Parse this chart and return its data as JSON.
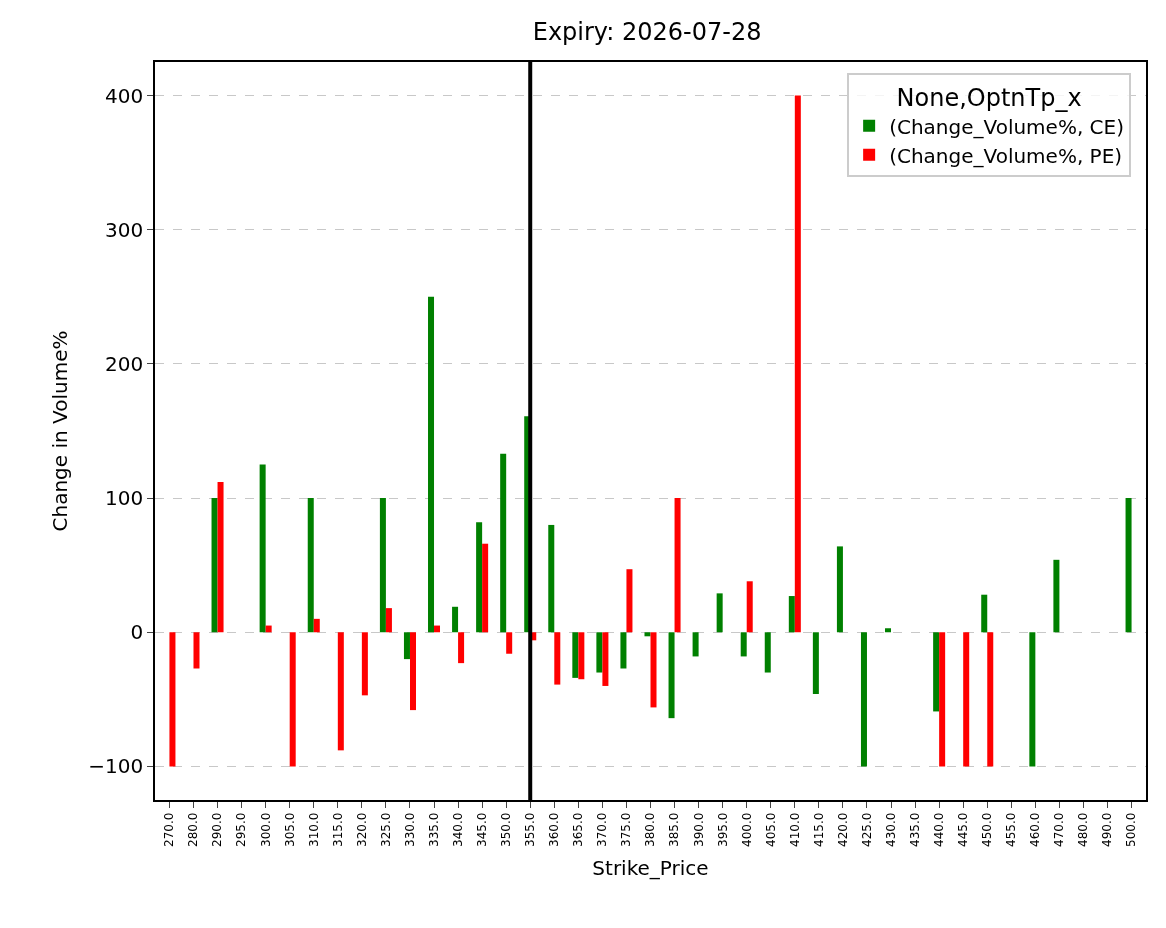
{
  "chart_data": {
    "type": "bar",
    "title": "Expiry: 2026-07-28",
    "xlabel": "Strike_Price",
    "ylabel": "Change in Volume%",
    "legend_title": "None,OptnTp_x",
    "categories": [
      "270.0",
      "280.0",
      "290.0",
      "295.0",
      "300.0",
      "305.0",
      "310.0",
      "315.0",
      "320.0",
      "325.0",
      "330.0",
      "335.0",
      "340.0",
      "345.0",
      "350.0",
      "355.0",
      "360.0",
      "365.0",
      "370.0",
      "375.0",
      "380.0",
      "385.0",
      "390.0",
      "395.0",
      "400.0",
      "405.0",
      "410.0",
      "415.0",
      "420.0",
      "425.0",
      "430.0",
      "435.0",
      "440.0",
      "445.0",
      "450.0",
      "455.0",
      "460.0",
      "470.0",
      "480.0",
      "490.0",
      "500.0"
    ],
    "series": [
      {
        "name": "(Change_Volume%, CE)",
        "color": "#008000",
        "values": [
          null,
          null,
          100,
          null,
          125,
          null,
          100,
          null,
          null,
          100,
          -20,
          250,
          19,
          82,
          133,
          161,
          80,
          -34,
          -30,
          -27,
          -3,
          -64,
          -18,
          29,
          -18,
          -30,
          27,
          -46,
          64,
          -100,
          3,
          null,
          -59,
          null,
          28,
          null,
          -100,
          54,
          null,
          null,
          100
        ]
      },
      {
        "name": "(Change_Volume%, PE)",
        "color": "#ff0000",
        "values": [
          -100,
          -27,
          112,
          null,
          5,
          -100,
          10,
          -88,
          -47,
          18,
          -58,
          5,
          -23,
          66,
          -16,
          -6,
          -39,
          -35,
          -40,
          47,
          -56,
          100,
          null,
          null,
          38,
          null,
          400,
          null,
          null,
          null,
          null,
          null,
          -100,
          -100,
          -100,
          null,
          null,
          null,
          null,
          null,
          null
        ]
      }
    ],
    "ylim": [
      -125,
      425
    ],
    "yticks": [
      {
        "value": -100,
        "label": "−100"
      },
      0,
      100,
      200,
      300,
      400
    ],
    "grid": "y",
    "legend": "top right",
    "ref_lines": [
      {
        "axis": "x",
        "value": "355.0",
        "color": "#000000",
        "line_style": "solid"
      }
    ]
  }
}
